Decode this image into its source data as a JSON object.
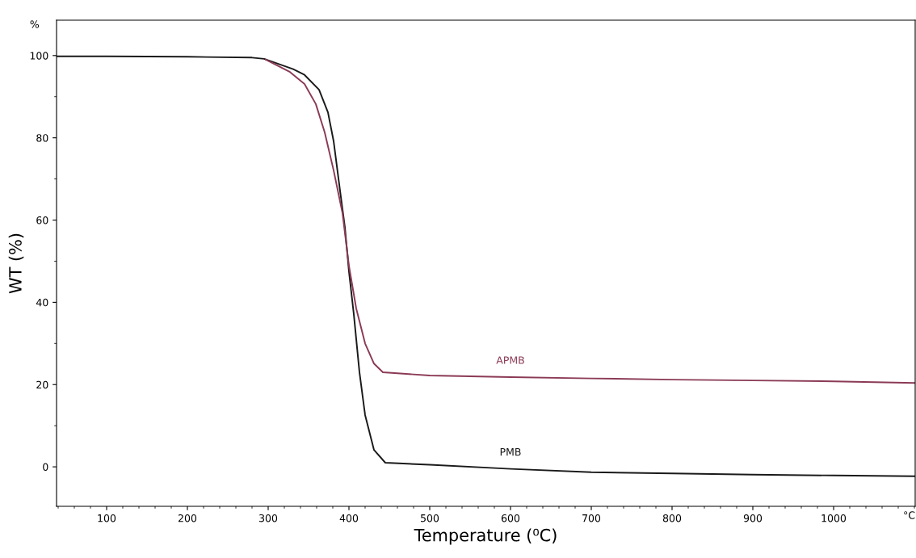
{
  "chart_data": {
    "type": "line",
    "xlabel": "Temperature (⁰C)",
    "ylabel": "WT (%)",
    "xlim": [
      38,
      1101
    ],
    "xticks": [
      100,
      200,
      300,
      400,
      500,
      600,
      700,
      800,
      900,
      1000
    ],
    "ylim": [
      -9.6,
      108.6
    ],
    "yticks": [
      0,
      20,
      40,
      60,
      80,
      100
    ],
    "grid": false,
    "legend": false,
    "marker": "none",
    "line_style": "solid",
    "annotations": [
      "%",
      "°C"
    ],
    "series": [
      {
        "name": "PMB",
        "color": "#1a1a1a",
        "x": [
          38,
          100,
          200,
          280,
          295,
          331,
          345,
          363,
          374,
          381,
          388,
          395,
          400,
          406,
          413,
          420,
          431,
          445,
          500,
          600,
          700,
          800,
          900,
          1000,
          1101
        ],
        "values": [
          99.8,
          99.8,
          99.7,
          99.5,
          99.2,
          96.7,
          95.3,
          91.7,
          86.2,
          79.2,
          68.6,
          58.2,
          47.5,
          37.1,
          23,
          12.6,
          4.1,
          1,
          0.5,
          -0.5,
          -1.3,
          -1.6,
          -1.9,
          -2.1,
          -2.3
        ]
      },
      {
        "name": "APMB",
        "color": "#8b3a55",
        "x": [
          297,
          327,
          345,
          359,
          370,
          381,
          392,
          400,
          409,
          420,
          431,
          442,
          500,
          600,
          700,
          800,
          900,
          1000,
          1101
        ],
        "values": [
          99,
          96,
          93.1,
          88.2,
          81.3,
          72.1,
          61.7,
          48.9,
          38.5,
          30,
          25.1,
          23,
          22.2,
          21.8,
          21.5,
          21.2,
          21,
          20.8,
          20.4
        ]
      }
    ]
  }
}
